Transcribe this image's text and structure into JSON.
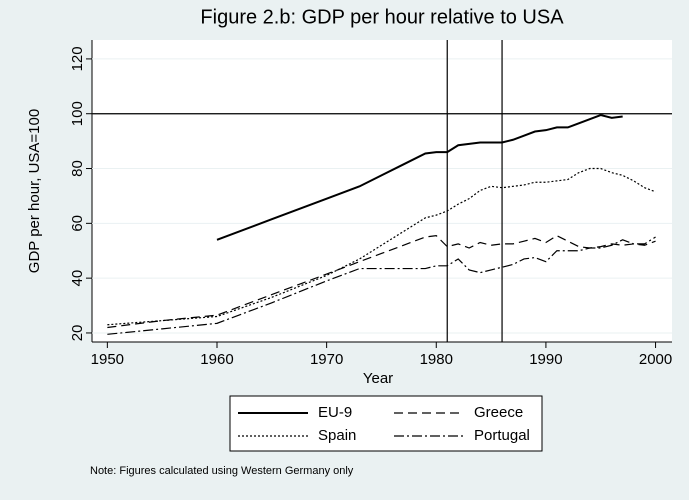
{
  "chart_data": {
    "type": "line",
    "title": "Figure 2.b: GDP per hour relative to USA",
    "xlabel": "Year",
    "ylabel": "GDP per hour, USA=100",
    "note": "Note: Figures calculated using Western Germany only",
    "x": [
      1950,
      1955,
      1960,
      1965,
      1970,
      1973,
      1975,
      1977,
      1979,
      1980,
      1981,
      1982,
      1983,
      1984,
      1985,
      1986,
      1987,
      1988,
      1989,
      1990,
      1991,
      1992,
      1993,
      1994,
      1995,
      1996,
      1997,
      1998,
      1999,
      2000
    ],
    "series": [
      {
        "name": "EU-9",
        "color": "#000000",
        "dash": "solid",
        "values": [
          null,
          null,
          54,
          61.5,
          69,
          73.5,
          77.5,
          81.5,
          85.5,
          86,
          86,
          88.5,
          89,
          89.5,
          89.5,
          89.5,
          90.5,
          92,
          93.5,
          94,
          95,
          95,
          96.5,
          98,
          99.5,
          98.5,
          99,
          null,
          null,
          null
        ]
      },
      {
        "name": "Greece",
        "color": "#000000",
        "dash": "dashed",
        "values": [
          22,
          24.5,
          26.5,
          34,
          41.5,
          46,
          49,
          52,
          55,
          55.5,
          51.5,
          52.5,
          51,
          53,
          52,
          52.5,
          52.5,
          53.5,
          54.5,
          53,
          55.5,
          53.5,
          51.5,
          51,
          51.5,
          52.5,
          52,
          52.5,
          52,
          53.5
        ]
      },
      {
        "name": "Spain",
        "color": "#000000",
        "dash": "dotted",
        "values": [
          23,
          24.5,
          26,
          33,
          41,
          47,
          52,
          57,
          62,
          63,
          64.5,
          67,
          69,
          72,
          73.5,
          73,
          73.5,
          74,
          75,
          75,
          75.5,
          76,
          78.5,
          80,
          80,
          78.5,
          77.5,
          75.5,
          73,
          71.5
        ]
      },
      {
        "name": "Portugal",
        "color": "#000000",
        "dash": "dashdot",
        "values": [
          19.5,
          21.5,
          23.5,
          31,
          39,
          43.5,
          43.5,
          43.5,
          43.5,
          44.5,
          44.5,
          47,
          43,
          42,
          43,
          44,
          45,
          47,
          47.5,
          46,
          50,
          50,
          50,
          51,
          51,
          52,
          54,
          52.5,
          52.5,
          55
        ]
      }
    ],
    "xlim": [
      1948.6,
      2001.5
    ],
    "ylim": [
      16.7,
      126.9
    ],
    "xticks": [
      1950,
      1960,
      1970,
      1980,
      1990,
      2000
    ],
    "yticks": [
      20,
      40,
      60,
      80,
      100,
      120
    ],
    "reference_lines": {
      "x": [
        1981,
        1986
      ],
      "y": [
        100
      ]
    },
    "grid": true,
    "legend": "bottom"
  }
}
